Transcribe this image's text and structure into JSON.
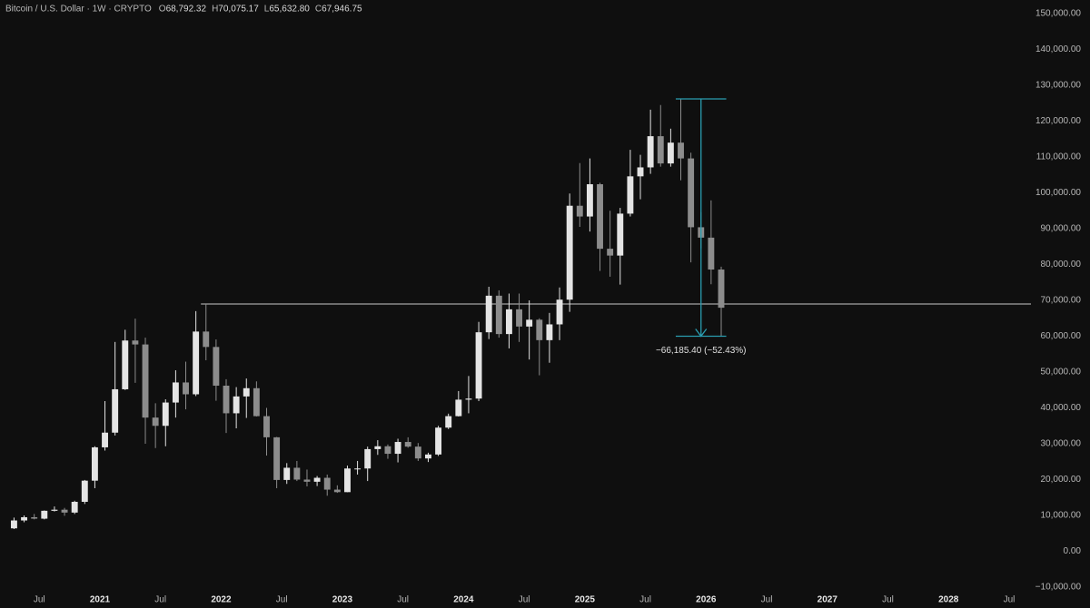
{
  "chart_data": {
    "type": "candlestick",
    "title": "Bitcoin / U.S. Dollar · 1W · CRYPTO",
    "ohlc_legend": [
      {
        "key": "O",
        "value": "68,792.32"
      },
      {
        "key": "H",
        "value": "70,075.17"
      },
      {
        "key": "L",
        "value": "65,632.80"
      },
      {
        "key": "C",
        "value": "67,946.75"
      }
    ],
    "up_color": "#e4e4e4",
    "down_color": "#8c8c8c",
    "x": [
      "2020-04",
      "2020-05",
      "2020-06",
      "2020-07",
      "2020-08",
      "2020-09",
      "2020-10",
      "2020-11",
      "2020-12",
      "2021-01",
      "2021-02",
      "2021-03",
      "2021-04",
      "2021-05",
      "2021-06",
      "2021-07",
      "2021-08",
      "2021-09",
      "2021-10",
      "2021-11",
      "2021-12",
      "2022-01",
      "2022-02",
      "2022-03",
      "2022-04",
      "2022-05",
      "2022-06",
      "2022-07",
      "2022-08",
      "2022-09",
      "2022-10",
      "2022-11",
      "2022-12",
      "2023-01",
      "2023-02",
      "2023-03",
      "2023-04",
      "2023-05",
      "2023-06",
      "2023-07",
      "2023-08",
      "2023-09",
      "2023-10",
      "2023-11",
      "2023-12",
      "2024-01",
      "2024-02",
      "2024-03",
      "2024-04",
      "2024-05",
      "2024-06",
      "2024-07",
      "2024-08",
      "2024-09",
      "2024-10",
      "2024-11",
      "2024-12",
      "2025-01",
      "2025-02",
      "2025-03",
      "2025-04",
      "2025-05",
      "2025-06",
      "2025-07",
      "2025-08",
      "2025-09",
      "2025-10",
      "2025-11",
      "2025-12",
      "2026-01",
      "2026-02"
    ],
    "open": [
      6400,
      8600,
      9500,
      9100,
      11300,
      11600,
      10800,
      13800,
      19700,
      29000,
      33100,
      45200,
      58800,
      57700,
      37300,
      35000,
      41500,
      47100,
      43800,
      61300,
      57000,
      46200,
      38500,
      43200,
      45500,
      37700,
      31800,
      19900,
      23300,
      20000,
      19400,
      20500,
      17200,
      16500,
      23100,
      23100,
      28500,
      29300,
      27200,
      30500,
      29200,
      25900,
      27000,
      34500,
      37700,
      42300,
      42600,
      61100,
      71300,
      60600,
      67500,
      62700,
      64600,
      58900,
      63300,
      70200,
      96400,
      93400,
      102400,
      84400,
      82500,
      94200,
      104600,
      107100,
      115800,
      108200,
      114000,
      109600,
      90400,
      87500,
      78600
    ],
    "high": [
      9400,
      10000,
      10400,
      11400,
      12500,
      12100,
      14100,
      19900,
      29300,
      41900,
      58400,
      61800,
      64900,
      59600,
      41300,
      42400,
      50500,
      52900,
      67000,
      69000,
      59100,
      48000,
      45800,
      48200,
      47400,
      40000,
      31900,
      24600,
      25200,
      22800,
      21000,
      21400,
      18400,
      23900,
      25200,
      29200,
      31000,
      29800,
      31400,
      31800,
      30200,
      27500,
      35000,
      38400,
      44700,
      48900,
      64000,
      73800,
      72800,
      71900,
      71900,
      70000,
      65000,
      66500,
      73600,
      99800,
      108300,
      109600,
      102800,
      95000,
      95800,
      112000,
      110600,
      123200,
      124500,
      117900,
      126200,
      111200,
      94600,
      97900,
      79400
    ],
    "low": [
      6200,
      8100,
      8900,
      8900,
      11100,
      9900,
      10400,
      13200,
      17600,
      28100,
      32300,
      45000,
      47000,
      30000,
      28800,
      29300,
      37300,
      39600,
      43300,
      53300,
      42000,
      33000,
      34300,
      37200,
      37600,
      26700,
      17600,
      18800,
      19600,
      18100,
      18200,
      15500,
      16300,
      16500,
      21400,
      19600,
      26900,
      25800,
      24800,
      28900,
      25200,
      24900,
      26600,
      34100,
      37600,
      38500,
      41900,
      59200,
      59600,
      56600,
      58400,
      53500,
      49100,
      52600,
      58900,
      66800,
      90500,
      89200,
      78200,
      76600,
      74400,
      93400,
      98200,
      105300,
      107300,
      107300,
      103500,
      80600,
      84500,
      74500,
      60000
    ],
    "close": [
      8600,
      9500,
      9100,
      11300,
      11600,
      10800,
      13800,
      19700,
      29000,
      33100,
      45200,
      58800,
      57700,
      37300,
      35000,
      41500,
      47100,
      43800,
      61300,
      57000,
      46200,
      38500,
      43200,
      45500,
      37700,
      31800,
      19900,
      23300,
      20000,
      19400,
      20500,
      17200,
      16500,
      23100,
      23100,
      28500,
      29300,
      27200,
      30500,
      29200,
      25900,
      27000,
      34500,
      37700,
      42300,
      42600,
      61100,
      71300,
      60600,
      67500,
      62700,
      64600,
      58900,
      63300,
      70200,
      96400,
      93400,
      102400,
      84400,
      82500,
      94200,
      104600,
      107100,
      115800,
      108200,
      114000,
      109600,
      90400,
      87500,
      78600,
      67946.75
    ],
    "xlim": [
      2020.176,
      2028.68
    ],
    "xticks": [
      {
        "value": 2020.5,
        "label": "Jul"
      },
      {
        "value": 2021,
        "label": "2021"
      },
      {
        "value": 2021.5,
        "label": "Jul"
      },
      {
        "value": 2022,
        "label": "2022"
      },
      {
        "value": 2022.5,
        "label": "Jul"
      },
      {
        "value": 2023,
        "label": "2023"
      },
      {
        "value": 2023.5,
        "label": "Jul"
      },
      {
        "value": 2024,
        "label": "2024"
      },
      {
        "value": 2024.5,
        "label": "Jul"
      },
      {
        "value": 2025,
        "label": "2025"
      },
      {
        "value": 2025.5,
        "label": "Jul"
      },
      {
        "value": 2026,
        "label": "2026"
      },
      {
        "value": 2026.5,
        "label": "Jul"
      },
      {
        "value": 2027,
        "label": "2027"
      },
      {
        "value": 2027.5,
        "label": "Jul"
      },
      {
        "value": 2028,
        "label": "2028"
      },
      {
        "value": 2028.5,
        "label": "Jul"
      }
    ],
    "ylim": [
      -10000,
      150000
    ],
    "yticks": [
      {
        "value": 150000,
        "label": "150,000.00"
      },
      {
        "value": 140000,
        "label": "140,000.00"
      },
      {
        "value": 130000,
        "label": "130,000.00"
      },
      {
        "value": 120000,
        "label": "120,000.00"
      },
      {
        "value": 110000,
        "label": "110,000.00"
      },
      {
        "value": 100000,
        "label": "100,000.00"
      },
      {
        "value": 90000,
        "label": "90,000.00"
      },
      {
        "value": 80000,
        "label": "80,000.00"
      },
      {
        "value": 70000,
        "label": "70,000.00"
      },
      {
        "value": 60000,
        "label": "60,000.00"
      },
      {
        "value": 50000,
        "label": "50,000.00"
      },
      {
        "value": 40000,
        "label": "40,000.00"
      },
      {
        "value": 30000,
        "label": "30,000.00"
      },
      {
        "value": 20000,
        "label": "20,000.00"
      },
      {
        "value": 10000,
        "label": "10,000.00"
      },
      {
        "value": 0,
        "label": "0.00"
      },
      {
        "value": -10000,
        "label": "−10,000.00"
      }
    ],
    "hline": {
      "value": 69000,
      "start": "2021-11",
      "color": "#c8c8c8"
    },
    "measure": {
      "top": 126200,
      "bottom": 60000,
      "start": "2025-10",
      "end": "2026-03",
      "color": "#2a9db0",
      "label": "−66,185.40 (−52.43%)"
    }
  }
}
